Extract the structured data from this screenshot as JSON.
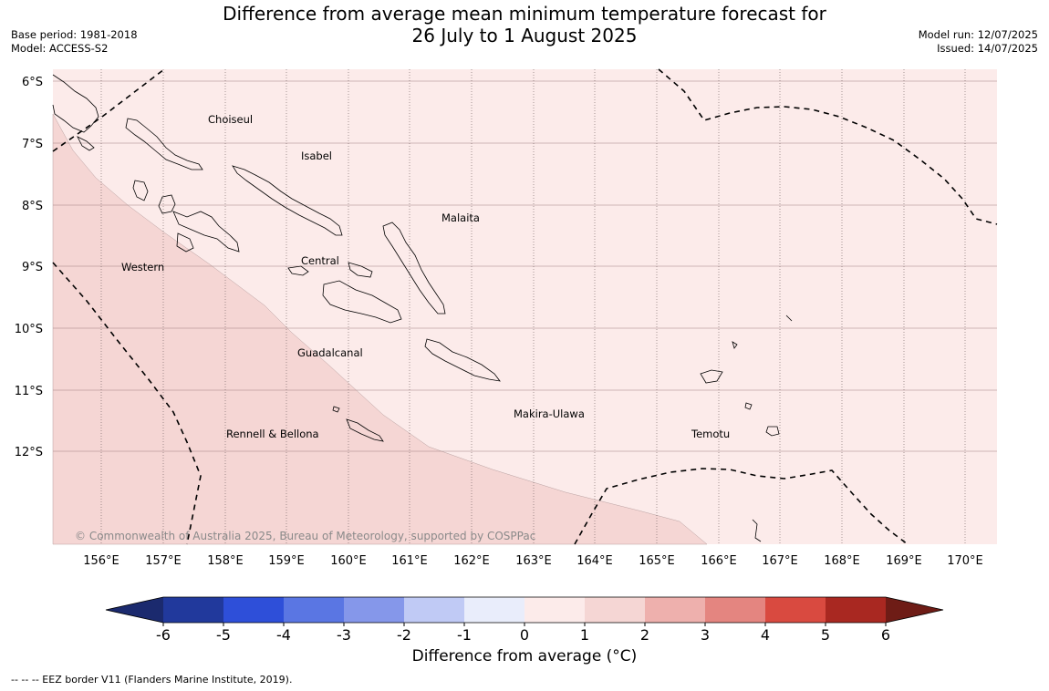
{
  "title_line1": "Difference from average mean minimum temperature forecast for",
  "title_line2": "26 July to 1 August 2025",
  "base_period": "Base period: 1981-2018",
  "model": "Model: ACCESS-S2",
  "model_run": "Model run: 12/07/2025",
  "issued": "Issued: 14/07/2025",
  "copyright": "© Commonwealth of Australia 2025, Bureau of Meteorology, supported by COSPPac",
  "lat_ticks": [
    "6°S",
    "7°S",
    "8°S",
    "9°S",
    "10°S",
    "11°S",
    "12°S"
  ],
  "lon_ticks": [
    "156°E",
    "157°E",
    "158°E",
    "159°E",
    "160°E",
    "161°E",
    "162°E",
    "163°E",
    "164°E",
    "165°E",
    "166°E",
    "167°E",
    "168°E",
    "169°E",
    "170°E"
  ],
  "regions": {
    "choiseul": "Choiseul",
    "isabel": "Isabel",
    "malaita": "Malaita",
    "central": "Central",
    "western": "Western",
    "guadalcanal": "Guadalcanal",
    "makira": "Makira-Ulawa",
    "rennell": "Rennell & Bellona",
    "temotu": "Temotu"
  },
  "colorbar": {
    "labels": [
      "-6",
      "-5",
      "-4",
      "-3",
      "-2",
      "-1",
      "0",
      "1",
      "2",
      "3",
      "4",
      "5",
      "6"
    ],
    "colors": [
      "#21399c",
      "#2e4fd9",
      "#5a76e3",
      "#8597ea",
      "#c0caf5",
      "#e9edfb",
      "#fcebea",
      "#f5d6d4",
      "#eeb0ad",
      "#e48580",
      "#d94a40",
      "#a92821"
    ],
    "under_color": "#1b2a6e",
    "over_color": "#6e1c16",
    "label": "Difference from average (°C)"
  },
  "legend_footer": "--  --  -- EEZ border V11 (Flanders Marine Institute, 2019).",
  "map_colors": {
    "band_0_1": "#fcebea",
    "band_1_2": "#f5d6d4",
    "grid": "#8a6a6a",
    "coast": "#000000"
  }
}
